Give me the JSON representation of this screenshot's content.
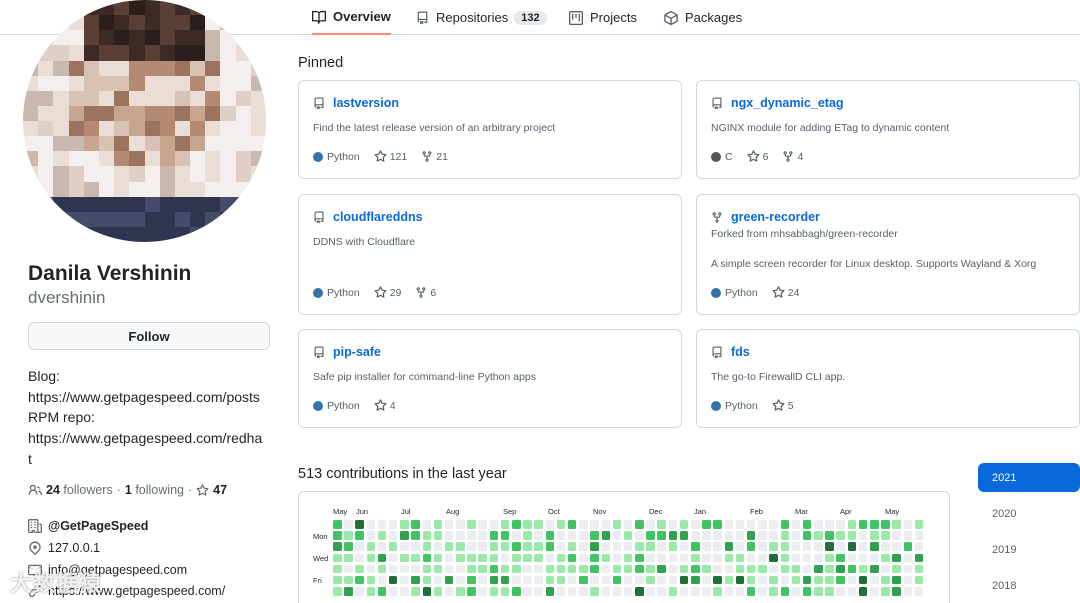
{
  "tabs": [
    {
      "label": "Overview",
      "icon": "book-icon",
      "active": true
    },
    {
      "label": "Repositories",
      "icon": "repo-icon",
      "count": "132"
    },
    {
      "label": "Projects",
      "icon": "project-icon"
    },
    {
      "label": "Packages",
      "icon": "package-icon"
    }
  ],
  "profile": {
    "name": "Danila Vershinin",
    "username": "dvershinin",
    "follow_label": "Follow",
    "bio_lines": [
      "Blog:",
      "https://www.getpagespeed.com/posts",
      "RPM repo:",
      "https://www.getpagespeed.com/redha",
      "t"
    ],
    "followers_count": "24",
    "followers_label": "followers",
    "separator": "·",
    "following_count": "1",
    "following_label": "following",
    "stars_count": "47",
    "company": "@GetPageSpeed",
    "location": "127.0.0.1",
    "email": "info@getpagespeed.com",
    "website": "https://www.getpagespeed.com/"
  },
  "pinned": {
    "title": "Pinned",
    "repos": [
      {
        "name": "lastversion",
        "desc": "Find the latest release version of an arbitrary project",
        "lang": "Python",
        "lang_color": "#3572A5",
        "stars": "121",
        "forks": "21"
      },
      {
        "name": "ngx_dynamic_etag",
        "desc": "NGINX module for adding ETag to dynamic content",
        "lang": "C",
        "lang_color": "#555555",
        "stars": "6",
        "forks": "4"
      },
      {
        "name": "cloudflareddns",
        "desc": "DDNS with Cloudflare",
        "lang": "Python",
        "lang_color": "#3572A5",
        "stars": "29",
        "forks": "6"
      },
      {
        "name": "green-recorder",
        "fork_note": "Forked from mhsabbagh/green-recorder",
        "desc": "A simple screen recorder for Linux desktop. Supports Wayland & Xorg",
        "lang": "Python",
        "lang_color": "#3572A5",
        "stars": "24"
      },
      {
        "name": "pip-safe",
        "desc": "Safe pip installer for command-line Python apps",
        "lang": "Python",
        "lang_color": "#3572A5",
        "stars": "4"
      },
      {
        "name": "fds",
        "desc": "The go-to FirewallD CLI app.",
        "lang": "Python",
        "lang_color": "#3572A5",
        "stars": "5"
      }
    ]
  },
  "contributions": {
    "title": "513 contributions in the last year",
    "months": [
      "May",
      "Jun",
      "Jul",
      "Aug",
      "Sep",
      "Oct",
      "Nov",
      "Dec",
      "Jan",
      "Feb",
      "Mar",
      "Apr",
      "May"
    ],
    "days": [
      "Mon",
      "Wed",
      "Fri"
    ],
    "levels": [
      "#ebedf0",
      "#9be9a8",
      "#40c463",
      "#30a14e",
      "#216e39"
    ]
  },
  "years": [
    {
      "label": "2021",
      "active": true
    },
    {
      "label": "2020"
    },
    {
      "label": "2019"
    },
    {
      "label": "2018"
    }
  ],
  "watermark": "大数据猿"
}
